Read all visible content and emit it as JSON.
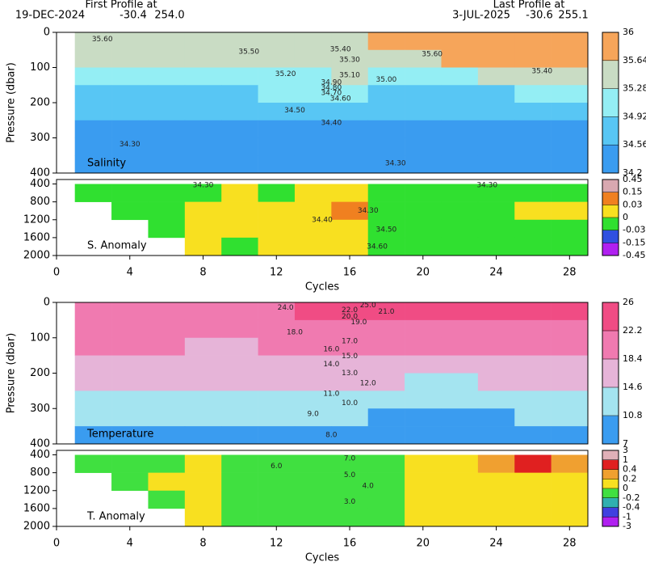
{
  "header": {
    "left": {
      "title": "First Profile at",
      "date": "19-DEC-2024",
      "lat": "-30.4",
      "lon": "254.0"
    },
    "right": {
      "title": "Last Profile at",
      "date": "3-JUL-2025",
      "lat": "-30.6",
      "lon": "255.1"
    }
  },
  "chart_data": [
    {
      "type": "heatmap",
      "title": "Salinity",
      "ylabel": "Pressure (dbar)",
      "xlim": [
        0,
        29
      ],
      "ylim": [
        0,
        400
      ],
      "yticks": [
        0,
        100,
        200,
        300,
        400
      ],
      "x_edges": [
        1,
        3,
        5,
        7,
        9,
        11,
        13,
        15,
        17,
        19,
        21,
        23,
        25,
        27,
        29
      ],
      "y_edges": [
        0,
        50,
        100,
        150,
        200,
        250,
        300,
        350,
        400
      ],
      "z": [
        [
          35.4,
          35.45,
          35.5,
          35.5,
          35.5,
          35.55,
          35.5,
          35.6,
          35.65,
          35.7,
          35.7,
          35.75,
          35.7,
          35.7
        ],
        [
          35.3,
          35.3,
          35.35,
          35.3,
          35.3,
          35.4,
          35.4,
          35.45,
          35.6,
          35.6,
          35.65,
          35.7,
          35.65,
          35.65
        ],
        [
          35.0,
          35.0,
          35.05,
          35.1,
          35.15,
          35.2,
          35.25,
          35.3,
          35.2,
          35.1,
          35.2,
          35.3,
          35.3,
          35.3
        ],
        [
          34.8,
          34.8,
          34.8,
          34.85,
          34.9,
          34.95,
          35.0,
          35.0,
          34.85,
          34.8,
          34.85,
          34.9,
          34.95,
          34.95
        ],
        [
          34.6,
          34.6,
          34.6,
          34.6,
          34.65,
          34.7,
          34.75,
          34.75,
          34.6,
          34.6,
          34.6,
          34.65,
          34.7,
          34.7
        ],
        [
          34.45,
          34.45,
          34.45,
          34.45,
          34.5,
          34.5,
          34.55,
          34.55,
          34.45,
          34.45,
          34.45,
          34.5,
          34.5,
          34.5
        ],
        [
          34.35,
          34.35,
          34.35,
          34.35,
          34.38,
          34.4,
          34.4,
          34.4,
          34.35,
          34.35,
          34.35,
          34.35,
          34.38,
          34.38
        ],
        [
          34.28,
          34.28,
          34.28,
          34.3,
          34.3,
          34.32,
          34.32,
          34.3,
          34.28,
          34.28,
          34.28,
          34.28,
          34.3,
          34.3
        ]
      ],
      "colorbar": {
        "ticks": [
          34.2,
          34.56,
          34.92,
          35.28,
          35.64,
          36
        ],
        "colors": [
          "#3a9cf0",
          "#58c6f4",
          "#94eef4",
          "#c9dcc4",
          "#f6a55a"
        ]
      },
      "contour_labels": [
        {
          "label": "35.60",
          "x": 2.5,
          "y": 20
        },
        {
          "label": "35.50",
          "x": 10.5,
          "y": 55
        },
        {
          "label": "35.40",
          "x": 15.5,
          "y": 48
        },
        {
          "label": "35.30",
          "x": 16,
          "y": 78
        },
        {
          "label": "35.20",
          "x": 12.5,
          "y": 118
        },
        {
          "label": "35.10",
          "x": 16,
          "y": 122
        },
        {
          "label": "35.00",
          "x": 18,
          "y": 135
        },
        {
          "label": "34.90",
          "x": 15,
          "y": 143
        },
        {
          "label": "34.80",
          "x": 15,
          "y": 158
        },
        {
          "label": "34.70",
          "x": 15,
          "y": 172
        },
        {
          "label": "34.60",
          "x": 15.5,
          "y": 188
        },
        {
          "label": "34.50",
          "x": 13,
          "y": 222
        },
        {
          "label": "34.40",
          "x": 15,
          "y": 258
        },
        {
          "label": "34.30",
          "x": 4,
          "y": 318
        },
        {
          "label": "34.30",
          "x": 18.5,
          "y": 372
        },
        {
          "label": "35.40",
          "x": 26.5,
          "y": 110
        },
        {
          "label": "35.60",
          "x": 20.5,
          "y": 62
        }
      ]
    },
    {
      "type": "heatmap",
      "title": "S. Anomaly",
      "xlabel": "Cycles",
      "xlim": [
        0,
        29
      ],
      "ylim": [
        300,
        2000
      ],
      "xticks": [
        0,
        4,
        8,
        12,
        16,
        20,
        24,
        28
      ],
      "yticks": [
        400,
        800,
        1200,
        1600,
        2000
      ],
      "x_edges": [
        1,
        3,
        5,
        7,
        9,
        11,
        13,
        15,
        17,
        19,
        21,
        23,
        25,
        27,
        29
      ],
      "y_edges": [
        400,
        800,
        1200,
        1600,
        2000
      ],
      "z": [
        [
          -0.01,
          -0.01,
          -0.01,
          -0.01,
          0.01,
          -0.01,
          0.01,
          0.01,
          -0.01,
          -0.01,
          -0.01,
          -0.01,
          -0.01,
          -0.01
        ],
        [
          null,
          -0.01,
          -0.01,
          0.01,
          0.01,
          0.02,
          0.02,
          0.05,
          -0.01,
          -0.01,
          -0.01,
          -0.01,
          0.01,
          0.01
        ],
        [
          null,
          null,
          -0.01,
          0.01,
          0.01,
          0.02,
          0.02,
          0.02,
          -0.01,
          -0.01,
          -0.01,
          -0.01,
          -0.01,
          -0.01
        ],
        [
          null,
          null,
          null,
          0.01,
          -0.01,
          0.01,
          0.01,
          0.02,
          -0.01,
          -0.01,
          -0.01,
          -0.01,
          -0.01,
          -0.01
        ]
      ],
      "colorbar": {
        "ticks": [
          -0.45,
          -0.15,
          -0.03,
          0,
          0.03,
          0.15,
          0.45
        ],
        "colors": [
          "#b020f0",
          "#3050e0",
          "#30e030",
          "#f8e020",
          "#f08020",
          "#d8a8b0"
        ]
      },
      "contour_labels": [
        {
          "label": "34.30",
          "x": 8,
          "y": 430
        },
        {
          "label": "34.30",
          "x": 17,
          "y": 1000
        },
        {
          "label": "34.40",
          "x": 14.5,
          "y": 1200
        },
        {
          "label": "34.50",
          "x": 18,
          "y": 1420
        },
        {
          "label": "34.60",
          "x": 17.5,
          "y": 1800
        },
        {
          "label": "34.30",
          "x": 23.5,
          "y": 430
        }
      ]
    },
    {
      "type": "heatmap",
      "title": "Temperature",
      "ylabel": "Pressure (dbar)",
      "xlim": [
        0,
        29
      ],
      "ylim": [
        0,
        400
      ],
      "yticks": [
        0,
        100,
        200,
        300,
        400
      ],
      "x_edges": [
        1,
        3,
        5,
        7,
        9,
        11,
        13,
        15,
        17,
        19,
        21,
        23,
        25,
        27,
        29
      ],
      "y_edges": [
        0,
        50,
        100,
        150,
        200,
        250,
        300,
        350,
        400
      ],
      "z": [
        [
          21,
          21,
          21.5,
          21.5,
          22,
          22,
          23,
          24,
          24.5,
          23,
          22.5,
          22.5,
          22.5,
          22.5
        ],
        [
          19.5,
          19.5,
          19.5,
          19.5,
          19.5,
          19.5,
          20,
          21,
          21,
          21,
          21,
          21,
          21,
          20.5
        ],
        [
          18.5,
          18.5,
          18.5,
          18,
          18,
          18.5,
          18.5,
          19,
          19,
          19,
          19,
          19.5,
          19,
          19
        ],
        [
          17,
          17,
          17,
          16.5,
          16.5,
          17,
          17,
          18,
          17.5,
          17,
          17,
          17.5,
          17.5,
          17.5
        ],
        [
          15.5,
          15.5,
          15.5,
          15,
          15,
          15,
          15.5,
          16,
          15,
          14.5,
          14.5,
          15,
          15.5,
          15
        ],
        [
          13,
          13,
          13,
          12.5,
          12.5,
          13,
          13,
          13.5,
          12.5,
          12,
          12,
          12.5,
          13,
          13
        ],
        [
          11.5,
          11.5,
          11.5,
          11,
          11,
          11,
          11,
          11.5,
          10.5,
          10.5,
          10.5,
          10.5,
          11,
          11
        ],
        [
          9.5,
          9.5,
          9.5,
          9.5,
          9,
          9,
          9,
          9.5,
          8.5,
          8.5,
          8.5,
          8.5,
          9,
          9
        ]
      ],
      "colorbar": {
        "ticks": [
          7,
          10.8,
          14.6,
          18.4,
          22.2,
          26
        ],
        "colors": [
          "#3a9cf0",
          "#a4e4f0",
          "#e6b4d8",
          "#f07ab0",
          "#f04c84"
        ]
      },
      "contour_labels": [
        {
          "label": "24.0",
          "x": 12.5,
          "y": 15
        },
        {
          "label": "25.0",
          "x": 17,
          "y": 8
        },
        {
          "label": "22.0",
          "x": 16,
          "y": 22
        },
        {
          "label": "21.0",
          "x": 18,
          "y": 26
        },
        {
          "label": "20.0",
          "x": 16,
          "y": 40
        },
        {
          "label": "19.0",
          "x": 16.5,
          "y": 56
        },
        {
          "label": "18.0",
          "x": 13,
          "y": 85
        },
        {
          "label": "17.0",
          "x": 16,
          "y": 110
        },
        {
          "label": "16.0",
          "x": 15,
          "y": 133
        },
        {
          "label": "15.0",
          "x": 16,
          "y": 152
        },
        {
          "label": "14.0",
          "x": 15,
          "y": 175
        },
        {
          "label": "13.0",
          "x": 16,
          "y": 200
        },
        {
          "label": "12.0",
          "x": 17,
          "y": 228
        },
        {
          "label": "11.0",
          "x": 15,
          "y": 258
        },
        {
          "label": "10.0",
          "x": 16,
          "y": 285
        },
        {
          "label": "9.0",
          "x": 14,
          "y": 315
        },
        {
          "label": "8.0",
          "x": 15,
          "y": 375
        }
      ]
    },
    {
      "type": "heatmap",
      "title": "T. Anomaly",
      "xlabel": "Cycles",
      "xlim": [
        0,
        29
      ],
      "ylim": [
        300,
        2000
      ],
      "xticks": [
        0,
        4,
        8,
        12,
        16,
        20,
        24,
        28
      ],
      "yticks": [
        400,
        800,
        1200,
        1600,
        2000
      ],
      "x_edges": [
        1,
        3,
        5,
        7,
        9,
        11,
        13,
        15,
        17,
        19,
        21,
        23,
        25,
        27,
        29
      ],
      "y_edges": [
        400,
        800,
        1200,
        1600,
        2000
      ],
      "z": [
        [
          -0.1,
          -0.1,
          -0.1,
          0.1,
          -0.1,
          -0.1,
          -0.1,
          -0.1,
          -0.1,
          0.1,
          0.1,
          0.3,
          0.5,
          0.3
        ],
        [
          null,
          -0.1,
          0.1,
          0.1,
          -0.1,
          -0.1,
          -0.1,
          -0.1,
          -0.1,
          0.1,
          0.1,
          0.1,
          0.1,
          0.1
        ],
        [
          null,
          null,
          -0.1,
          0.1,
          -0.1,
          -0.1,
          -0.1,
          -0.1,
          -0.1,
          0.1,
          0.1,
          0.1,
          0.1,
          0.1
        ],
        [
          null,
          null,
          null,
          0.1,
          -0.1,
          -0.1,
          -0.1,
          -0.1,
          -0.1,
          0.1,
          0.1,
          0.1,
          0.1,
          0.1
        ]
      ],
      "colorbar": {
        "ticks": [
          -3,
          -1,
          -0.4,
          -0.2,
          0,
          0.2,
          0.4,
          1,
          3
        ],
        "colors": [
          "#b020f0",
          "#4040e0",
          "#30b0b0",
          "#40e040",
          "#f8e020",
          "#f0a030",
          "#e02020",
          "#e0b0b8"
        ]
      },
      "contour_labels": [
        {
          "label": "7.0",
          "x": 16,
          "y": 480
        },
        {
          "label": "6.0",
          "x": 12,
          "y": 650
        },
        {
          "label": "5.0",
          "x": 16,
          "y": 850
        },
        {
          "label": "4.0",
          "x": 17,
          "y": 1100
        },
        {
          "label": "3.0",
          "x": 16,
          "y": 1450
        }
      ]
    }
  ]
}
